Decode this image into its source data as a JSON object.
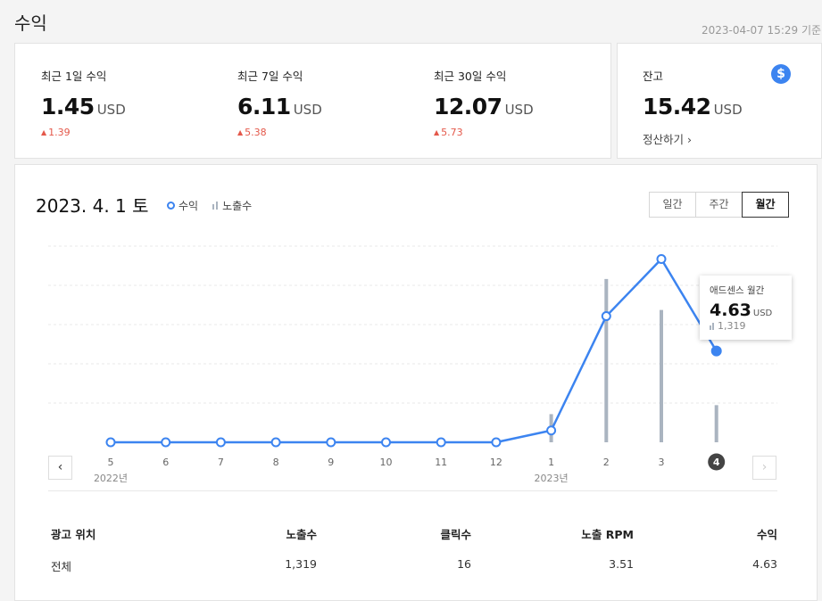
{
  "page": {
    "title": "수익",
    "timestamp": "2023-04-07 15:29 기준"
  },
  "summary": [
    {
      "label": "최근 1일 수익",
      "value": "1.45",
      "unit": "USD",
      "change": "1.39"
    },
    {
      "label": "최근 7일 수익",
      "value": "6.11",
      "unit": "USD",
      "change": "5.38"
    },
    {
      "label": "최근 30일 수익",
      "value": "12.07",
      "unit": "USD",
      "change": "5.73"
    }
  ],
  "balance": {
    "label": "잔고",
    "value": "15.42",
    "unit": "USD",
    "settle_label": "정산하기",
    "icon": "dollar-icon",
    "icon_glyph": "$"
  },
  "chart_header": {
    "date": "2023. 4. 1 토",
    "legend_revenue": "수익",
    "legend_impressions": "노출수"
  },
  "period_tabs": [
    {
      "label": "일간",
      "active": false
    },
    {
      "label": "주간",
      "active": false
    },
    {
      "label": "월간",
      "active": true
    }
  ],
  "nav": {
    "prev": "‹",
    "next": "›"
  },
  "tooltip": {
    "title": "애드센스 월간",
    "value": "4.63",
    "unit": "USD",
    "impressions": "1,319"
  },
  "colors": {
    "line": "#3c84f0",
    "bar": "#aab4c0",
    "up": "#e4584a",
    "active_month": "#444444"
  },
  "chart_data": {
    "type": "line",
    "categories": [
      "5",
      "6",
      "7",
      "8",
      "9",
      "10",
      "11",
      "12",
      "1",
      "2",
      "3",
      "4"
    ],
    "year_labels": [
      {
        "index": 0,
        "label": "2022년"
      },
      {
        "index": 8,
        "label": "2023년"
      }
    ],
    "selected_index": 11,
    "series": [
      {
        "name": "수익",
        "type": "line",
        "values": [
          0,
          0,
          0,
          0,
          0,
          0,
          0,
          0,
          0.6,
          6.4,
          9.3,
          4.63
        ]
      },
      {
        "name": "노출수",
        "type": "bar",
        "values": [
          0,
          0,
          0,
          0,
          0,
          0,
          0,
          0,
          1000,
          5800,
          4700,
          1319
        ]
      }
    ],
    "ylim": [
      0,
      10
    ],
    "y2lim": [
      0,
      7000
    ],
    "grid": true
  },
  "table": {
    "headers": [
      "광고 위치",
      "노출수",
      "클릭수",
      "노출 RPM",
      "수익"
    ],
    "rows": [
      [
        "전체",
        "1,319",
        "16",
        "3.51",
        "4.63"
      ]
    ]
  }
}
